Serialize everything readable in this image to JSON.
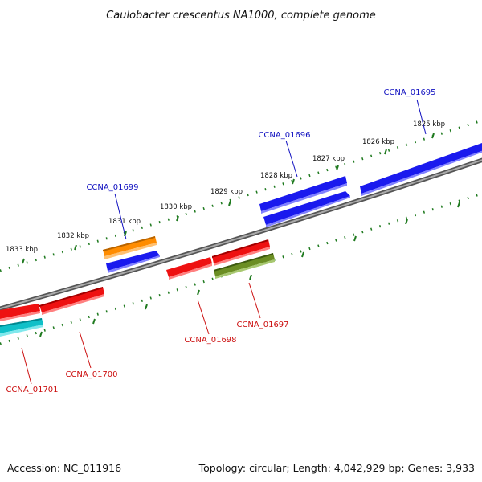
{
  "title": "Caulobacter crescentus NA1000, complete genome",
  "footer": {
    "accession": "Accession: NC_011916",
    "summary": "Topology: circular; Length: 4,042,929 bp; Genes: 3,933"
  },
  "colors": {
    "backbone": "#808080",
    "ticks": "#1f7a1f",
    "forward_label": "#1010c0",
    "reverse_label": "#cc1010"
  },
  "kbp_labels": [
    "1825 kbp",
    "1826 kbp",
    "1827 kbp",
    "1828 kbp",
    "1829 kbp",
    "1830 kbp",
    "1831 kbp",
    "1832 kbp",
    "1833 kbp"
  ],
  "gene_labels": [
    {
      "name": "CCNA_01695",
      "strand": "forward"
    },
    {
      "name": "CCNA_01696",
      "strand": "forward"
    },
    {
      "name": "CCNA_01699",
      "strand": "forward"
    },
    {
      "name": "CCNA_01697",
      "strand": "reverse"
    },
    {
      "name": "CCNA_01698",
      "strand": "reverse"
    },
    {
      "name": "CCNA_01700",
      "strand": "reverse"
    },
    {
      "name": "CCNA_01701",
      "strand": "reverse"
    }
  ],
  "features": [
    {
      "id": "f1",
      "color": "#1a1aee",
      "strand": "forward"
    },
    {
      "id": "f2",
      "color": "#1a1aee",
      "strand": "forward"
    },
    {
      "id": "f3",
      "color": "#1a1aee",
      "strand": "forward"
    },
    {
      "id": "f4",
      "color": "#ff8c00",
      "strand": "forward"
    },
    {
      "id": "f5",
      "color": "#1a1aee",
      "strand": "forward"
    },
    {
      "id": "f6",
      "color": "#ee1111",
      "strand": "reverse"
    },
    {
      "id": "f7",
      "color": "#ee1111",
      "strand": "reverse"
    },
    {
      "id": "f8",
      "color": "#6b8e23",
      "strand": "reverse"
    },
    {
      "id": "f9",
      "color": "#ee1111",
      "strand": "reverse"
    },
    {
      "id": "f10",
      "color": "#ee1111",
      "strand": "reverse"
    },
    {
      "id": "f11",
      "color": "#10c0c8",
      "strand": "reverse"
    }
  ]
}
